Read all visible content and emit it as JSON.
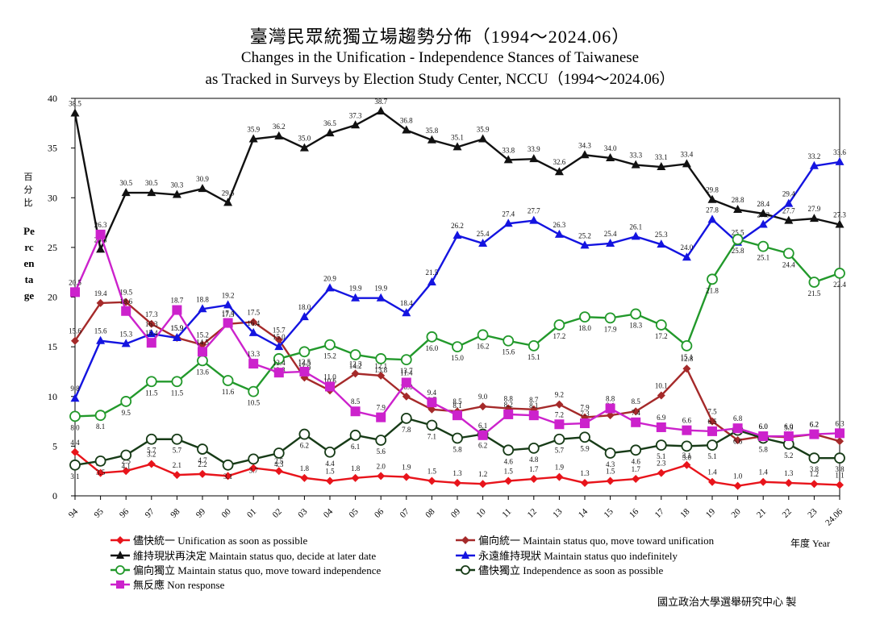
{
  "colors": {
    "unify_asap": "#e8141b",
    "lean_unify": "#a52a2a",
    "status_quo_decide": "#111111",
    "status_quo_indef": "#1414e0",
    "lean_indep": "#22992b",
    "indep_asap": "#173b17",
    "non_response": "#cc22cc"
  },
  "chart_data": {
    "type": "line",
    "title": "臺灣民眾統獨立場趨勢分佈（1994～2024.06）",
    "subtitle_line1": "Changes in the Unification - Independence Stances of Taiwanese",
    "subtitle_line2": "as Tracked in Surveys by Election Study Center, NCCU（1994～2024.06）",
    "ylabel_zh": "百分比",
    "ylabel_en": "Percentage",
    "xlabel": "年度 Year",
    "source": "國立政治大學選舉研究中心 製",
    "ylim": [
      0,
      40
    ],
    "yticks": [
      "0",
      "5",
      "10",
      "15",
      "20",
      "25",
      "30",
      "35",
      "40"
    ],
    "x": [
      "94",
      "95",
      "96",
      "97",
      "98",
      "99",
      "00",
      "01",
      "02",
      "03",
      "04",
      "05",
      "06",
      "07",
      "08",
      "09",
      "10",
      "11",
      "12",
      "13",
      "14",
      "15",
      "16",
      "17",
      "18",
      "19",
      "20",
      "21",
      "22",
      "23",
      "24.06"
    ],
    "legend": "bottom",
    "series": [
      {
        "key": "unify_asap",
        "name": "儘快統一 Unification as soon as possible",
        "marker": "diamond",
        "values": [
          4.4,
          2.3,
          2.5,
          3.2,
          2.1,
          2.2,
          2.0,
          2.8,
          2.5,
          1.8,
          1.5,
          1.8,
          2.0,
          1.9,
          1.5,
          1.3,
          1.2,
          1.5,
          1.7,
          1.9,
          1.3,
          1.5,
          1.7,
          2.3,
          3.1,
          1.4,
          1.0,
          1.4,
          1.3,
          1.2,
          1.1
        ],
        "labels": [
          "4.4",
          "2.3",
          "2.5",
          "3.2",
          "2.1",
          "2.2",
          "2.0",
          "2.8",
          "2.5",
          "1.8",
          "1.5",
          "1.8",
          "2.0",
          "1.9",
          "1.5",
          "1.3",
          "1.2",
          "1.5",
          "1.7",
          "1.9",
          "1.3",
          "1.5",
          "1.7",
          "2.3",
          "3.1",
          "1.4",
          "1.0",
          "1.4",
          "1.3",
          "1.2",
          "1.1"
        ]
      },
      {
        "key": "lean_unify",
        "name": "偏向統一 Maintain status quo, move toward unification",
        "marker": "diamond",
        "values": [
          15.6,
          19.4,
          19.5,
          17.3,
          15.9,
          15.2,
          17.3,
          17.5,
          15.7,
          11.9,
          10.6,
          12.3,
          12.1,
          10.0,
          8.7,
          8.5,
          9.0,
          8.8,
          8.7,
          9.2,
          7.9,
          8.1,
          8.5,
          10.1,
          12.8,
          7.5,
          5.6,
          6.0,
          5.9,
          6.2,
          5.5
        ],
        "labels": [
          "15.6",
          "19.4",
          "19.5",
          "17.3",
          "15.9",
          "15.2",
          "17.3",
          "17.5",
          "15.7",
          "11.9",
          "10.6",
          "12.3",
          "12.1",
          "10.0",
          "8.7",
          "8.5",
          "9.0",
          "8.8",
          "8.7",
          "9.2",
          "7.9",
          "8.1",
          "8.5",
          "10.1",
          "12.8",
          "7.5",
          "5.6",
          "6.0",
          "5.9",
          "6.2",
          "5.5"
        ]
      },
      {
        "key": "status_quo_decide",
        "name": "維持現狀再決定 Maintain status quo, decide at later date",
        "marker": "triangle",
        "values": [
          38.5,
          24.8,
          30.5,
          30.5,
          30.3,
          30.9,
          29.5,
          35.9,
          36.2,
          35.0,
          36.5,
          37.3,
          38.7,
          36.8,
          35.8,
          35.1,
          35.9,
          33.8,
          33.9,
          32.6,
          34.3,
          34.0,
          33.3,
          33.1,
          33.4,
          29.8,
          28.8,
          28.4,
          27.7,
          27.9,
          27.3
        ],
        "labels": [
          "38.5",
          "24.8",
          "30.5",
          "30.5",
          "30.3",
          "30.9",
          "29.5",
          "35.9",
          "36.2",
          "35.0",
          "36.5",
          "37.3",
          "38.7",
          "36.8",
          "35.8",
          "35.1",
          "35.9",
          "33.8",
          "33.9",
          "32.6",
          "34.3",
          "34.0",
          "33.3",
          "33.1",
          "33.4",
          "29.8",
          "28.8",
          "28.4",
          "27.7",
          "27.9",
          "27.3"
        ]
      },
      {
        "key": "status_quo_indef",
        "name": "永遠維持現狀 Maintain status quo indefinitely",
        "marker": "triangle",
        "values": [
          9.8,
          15.6,
          15.3,
          16.3,
          15.9,
          18.8,
          19.2,
          16.4,
          15.0,
          18.0,
          20.9,
          19.9,
          19.9,
          18.4,
          21.5,
          26.2,
          25.4,
          27.4,
          27.7,
          26.3,
          25.2,
          25.4,
          26.1,
          25.3,
          24.0,
          27.8,
          25.5,
          27.3,
          29.4,
          33.2,
          33.6
        ],
        "labels": [
          "9.8",
          "15.6",
          "15.3",
          "16.3",
          "15.9",
          "18.8",
          "19.2",
          "16.4",
          "15.0",
          "18.0",
          "20.9",
          "19.9",
          "19.9",
          "18.4",
          "21.5",
          "26.2",
          "25.4",
          "27.4",
          "27.7",
          "26.3",
          "25.2",
          "25.4",
          "26.1",
          "25.3",
          "24.0",
          "27.8",
          "25.5",
          "27.3",
          "29.4",
          "33.2",
          "33.6"
        ]
      },
      {
        "key": "lean_indep",
        "name": "偏向獨立 Maintain status quo, move toward independence",
        "marker": "circle",
        "values": [
          8.0,
          8.1,
          9.5,
          11.5,
          11.5,
          13.6,
          11.6,
          10.5,
          13.8,
          14.5,
          15.2,
          14.2,
          13.8,
          13.7,
          16.0,
          15.0,
          16.2,
          15.6,
          15.1,
          17.2,
          18.0,
          17.9,
          18.3,
          17.2,
          15.1,
          21.8,
          25.8,
          25.1,
          24.4,
          21.5,
          22.4
        ],
        "labels": [
          "8.0",
          "8.1",
          "9.5",
          "11.5",
          "11.5",
          "13.6",
          "11.6",
          "10.5",
          "13.8",
          "14.5",
          "15.2",
          "14.2",
          "13.8",
          "13.7",
          "16.0",
          "15.0",
          "16.2",
          "15.6",
          "15.1",
          "17.2",
          "18.0",
          "17.9",
          "18.3",
          "17.2",
          "15.1",
          "21.8",
          "25.8",
          "25.1",
          "24.4",
          "21.5",
          "22.4"
        ]
      },
      {
        "key": "indep_asap",
        "name": "儘快獨立 Independence as soon as possible",
        "marker": "circle",
        "values": [
          3.1,
          3.5,
          4.1,
          5.7,
          5.7,
          4.7,
          3.1,
          3.7,
          4.3,
          6.2,
          4.4,
          6.1,
          5.6,
          7.8,
          7.1,
          5.8,
          6.2,
          4.6,
          4.8,
          5.7,
          5.9,
          4.3,
          4.6,
          5.1,
          5.0,
          5.1,
          6.6,
          5.8,
          5.2,
          3.8,
          3.8
        ],
        "labels": [
          "3.1",
          "3.5",
          "4.1",
          "5.7",
          "5.7",
          "4.7",
          "3.1",
          "3.7",
          "4.3",
          "6.2",
          "4.4",
          "6.1",
          "5.6",
          "7.8",
          "7.1",
          "5.8",
          "6.2",
          "4.6",
          "4.8",
          "5.7",
          "5.9",
          "4.3",
          "4.6",
          "5.1",
          "5.0",
          "5.1",
          "6.6",
          "5.8",
          "5.2",
          "3.8",
          "3.8"
        ]
      },
      {
        "key": "non_response",
        "name": "無反應 Non response",
        "marker": "square",
        "values": [
          20.5,
          26.3,
          18.6,
          15.4,
          18.7,
          14.5,
          17.4,
          13.3,
          12.4,
          12.5,
          11.0,
          8.5,
          7.9,
          11.4,
          9.4,
          8.1,
          6.1,
          8.2,
          8.1,
          7.2,
          7.3,
          8.8,
          7.4,
          6.9,
          6.6,
          6.5,
          6.8,
          6.0,
          6.0,
          6.2,
          6.3
        ],
        "labels": [
          "20.5",
          "26.3",
          "18.6",
          "15.4",
          "18.7",
          "14.5",
          "17.4",
          "13.3",
          "12.4",
          "12.5",
          "11.0",
          "8.5",
          "7.9",
          "11.4",
          "9.4",
          "8.1",
          "6.1",
          "8.2",
          "8.1",
          "7.2",
          "7.3",
          "8.8",
          "7.4",
          "6.9",
          "6.6",
          "6.5",
          "6.8",
          "6.0",
          "6.0",
          "6.2",
          "6.3"
        ]
      }
    ]
  }
}
